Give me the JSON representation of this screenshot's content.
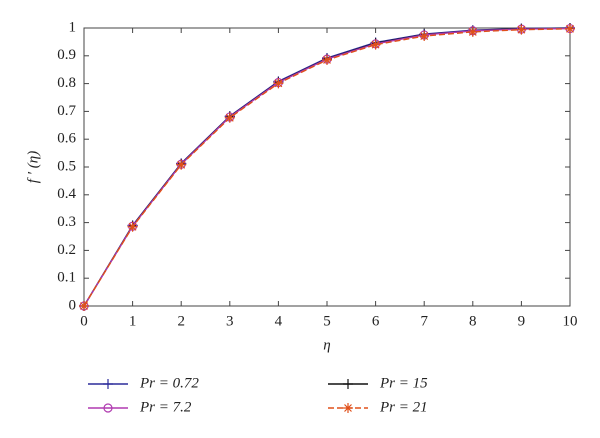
{
  "chart_data": {
    "type": "line",
    "x_label": "η",
    "y_label": "f ′ (η)",
    "x": [
      0,
      1,
      2,
      3,
      4,
      5,
      6,
      7,
      8,
      9,
      10
    ],
    "xlim": [
      0,
      10
    ],
    "xticks": [
      0,
      1,
      2,
      3,
      4,
      5,
      6,
      7,
      8,
      9,
      10
    ],
    "ylim": [
      0,
      1
    ],
    "yticks": [
      0,
      0.1,
      0.2,
      0.3,
      0.4,
      0.5,
      0.6,
      0.7,
      0.8,
      0.9,
      1
    ],
    "legend": "bottom",
    "series": [
      {
        "name": "Pr = 0.72",
        "color": "#2b2b9a",
        "marker": "+",
        "dash": "solid",
        "values": [
          0,
          0.29,
          0.513,
          0.683,
          0.808,
          0.892,
          0.948,
          0.978,
          0.992,
          0.998,
          1.0
        ]
      },
      {
        "name": "Pr = 15",
        "color": "#111111",
        "marker": "+",
        "dash": "solid",
        "values": [
          0,
          0.288,
          0.511,
          0.681,
          0.805,
          0.889,
          0.945,
          0.976,
          0.99,
          0.997,
          0.999
        ]
      },
      {
        "name": "Pr = 7.2",
        "color": "#b03ab0",
        "marker": "o",
        "dash": "solid",
        "values": [
          0,
          0.287,
          0.51,
          0.68,
          0.804,
          0.888,
          0.943,
          0.975,
          0.99,
          0.996,
          0.998
        ]
      },
      {
        "name": "Pr = 21",
        "color": "#e0501a",
        "marker": "*",
        "dash": "dashed",
        "values": [
          0,
          0.285,
          0.508,
          0.677,
          0.801,
          0.885,
          0.94,
          0.971,
          0.986,
          0.994,
          0.997
        ]
      }
    ]
  }
}
